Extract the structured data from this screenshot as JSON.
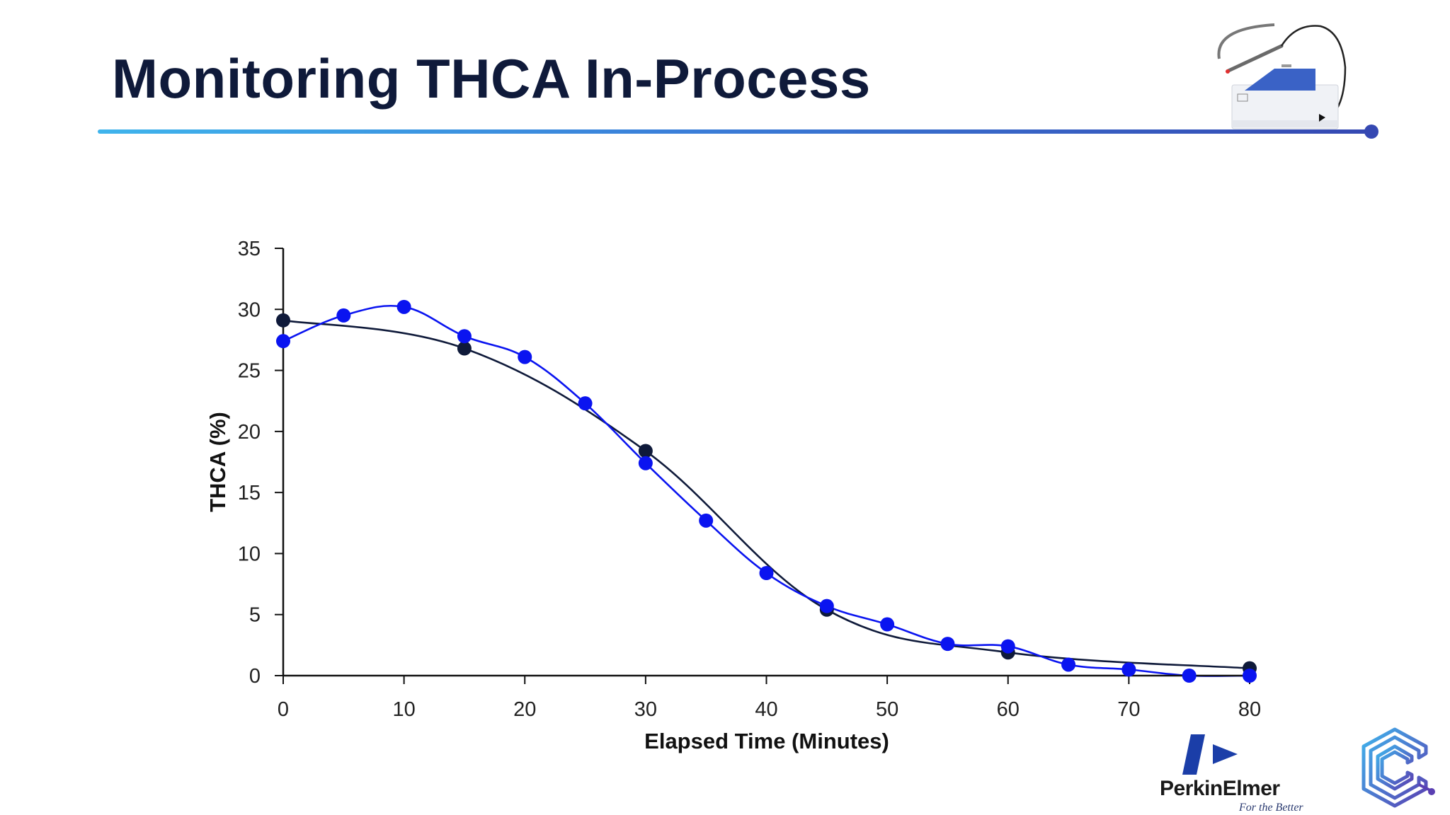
{
  "slide": {
    "title": "Monitoring THCA In-Process"
  },
  "branding": {
    "perkinelmer_name": "PerkinElmer",
    "perkinelmer_tagline": "For the Better",
    "accent_color": "#3548b2"
  },
  "icons": {
    "device": "benchtop-analyzer-with-probe-icon",
    "company_logo": "perkinelmer-logo",
    "secondary_logo": "c-letter-circuit-logo"
  },
  "chart_data": {
    "type": "scatter",
    "title": "",
    "xlabel": "Elapsed Time (Minutes)",
    "ylabel": "THCA (%)",
    "xlim": [
      0,
      80
    ],
    "ylim": [
      0,
      35
    ],
    "x_ticks": [
      "0",
      "10",
      "20",
      "30",
      "40",
      "50",
      "60",
      "70",
      "80"
    ],
    "y_ticks": [
      "0",
      "5",
      "10",
      "15",
      "20",
      "25",
      "30",
      "35"
    ],
    "grid": false,
    "legend": false,
    "series": [
      {
        "color": "#0f1a3a",
        "smooth_line": true,
        "points": [
          {
            "x": 0,
            "y": 29.1
          },
          {
            "x": 15,
            "y": 26.8
          },
          {
            "x": 30,
            "y": 18.4
          },
          {
            "x": 45,
            "y": 5.4
          },
          {
            "x": 60,
            "y": 1.9
          },
          {
            "x": 80,
            "y": 0.6
          }
        ]
      },
      {
        "color": "#0a14f0",
        "smooth_line": true,
        "points": [
          {
            "x": 0,
            "y": 27.4
          },
          {
            "x": 5,
            "y": 29.5
          },
          {
            "x": 10,
            "y": 30.2
          },
          {
            "x": 15,
            "y": 27.8
          },
          {
            "x": 20,
            "y": 26.1
          },
          {
            "x": 25,
            "y": 22.3
          },
          {
            "x": 30,
            "y": 17.4
          },
          {
            "x": 35,
            "y": 12.7
          },
          {
            "x": 40,
            "y": 8.4
          },
          {
            "x": 45,
            "y": 5.7
          },
          {
            "x": 50,
            "y": 4.2
          },
          {
            "x": 55,
            "y": 2.6
          },
          {
            "x": 60,
            "y": 2.4
          },
          {
            "x": 65,
            "y": 0.9
          },
          {
            "x": 70,
            "y": 0.5
          },
          {
            "x": 75,
            "y": 0.0
          },
          {
            "x": 80,
            "y": 0.0
          }
        ]
      }
    ]
  }
}
